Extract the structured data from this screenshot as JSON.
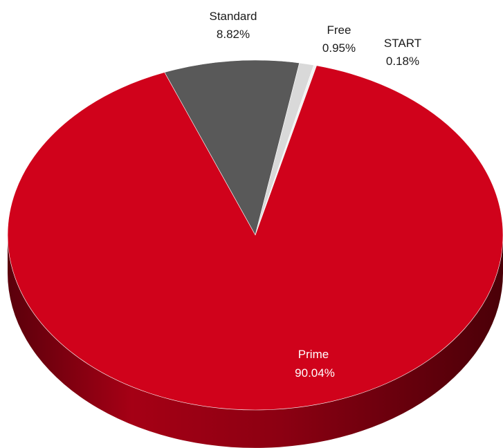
{
  "chart_data": {
    "type": "pie",
    "style": "3d",
    "slices": [
      {
        "label": "Prime",
        "value": 90.04,
        "value_label": "90.04%",
        "color": "#d0021b",
        "side_color": "#8a0012"
      },
      {
        "label": "Standard",
        "value": 8.82,
        "value_label": "8.82%",
        "color": "#595959",
        "side_color": "#3a3a3a"
      },
      {
        "label": "Free",
        "value": 0.95,
        "value_label": "0.95%",
        "color": "#d9d9d9",
        "side_color": "#a6a6a6"
      },
      {
        "label": "START",
        "value": 0.18,
        "value_label": "0.18%",
        "color": "#f2f2f2",
        "side_color": "#bfbfbf"
      }
    ]
  }
}
